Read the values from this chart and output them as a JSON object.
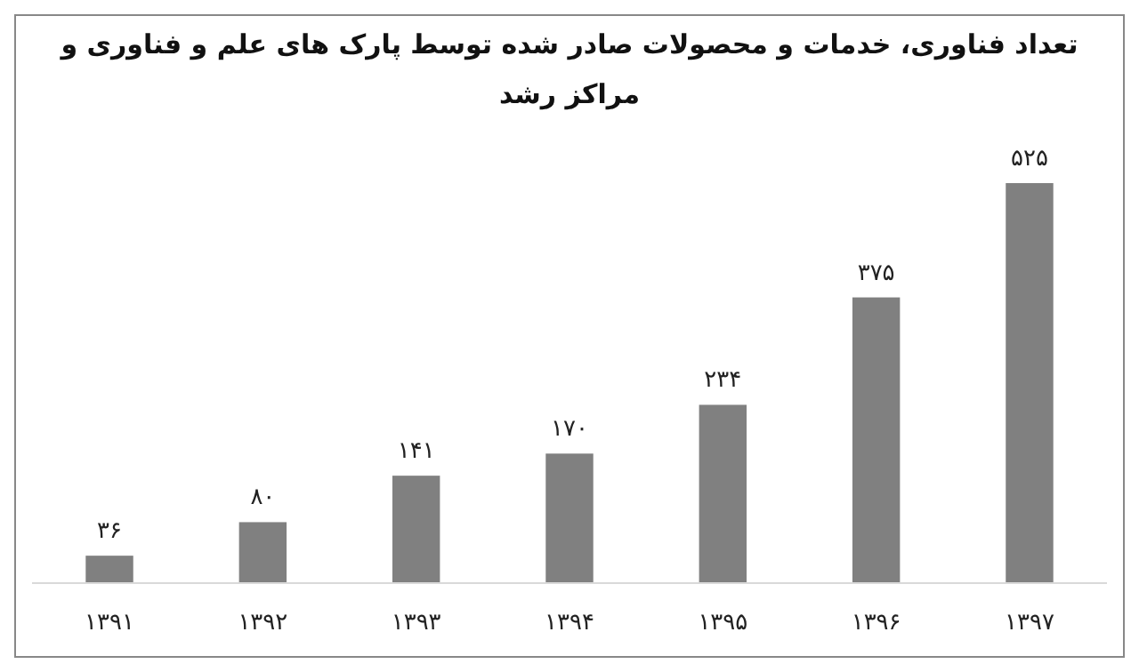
{
  "chart_data": {
    "type": "bar",
    "title": "تعداد فناوری، خدمات و محصولات صادر شده توسط پارک های علم و فناوری و مراکز رشد",
    "categories": [
      "۱۳۹۱",
      "۱۳۹۲",
      "۱۳۹۳",
      "۱۳۹۴",
      "۱۳۹۵",
      "۱۳۹۶",
      "۱۳۹۷"
    ],
    "values": [
      36,
      80,
      141,
      170,
      234,
      375,
      525
    ],
    "value_labels": [
      "۳۶",
      "۸۰",
      "۱۴۱",
      "۱۷۰",
      "۲۳۴",
      "۳۷۵",
      "۵۲۵"
    ],
    "color": "#808080"
  }
}
